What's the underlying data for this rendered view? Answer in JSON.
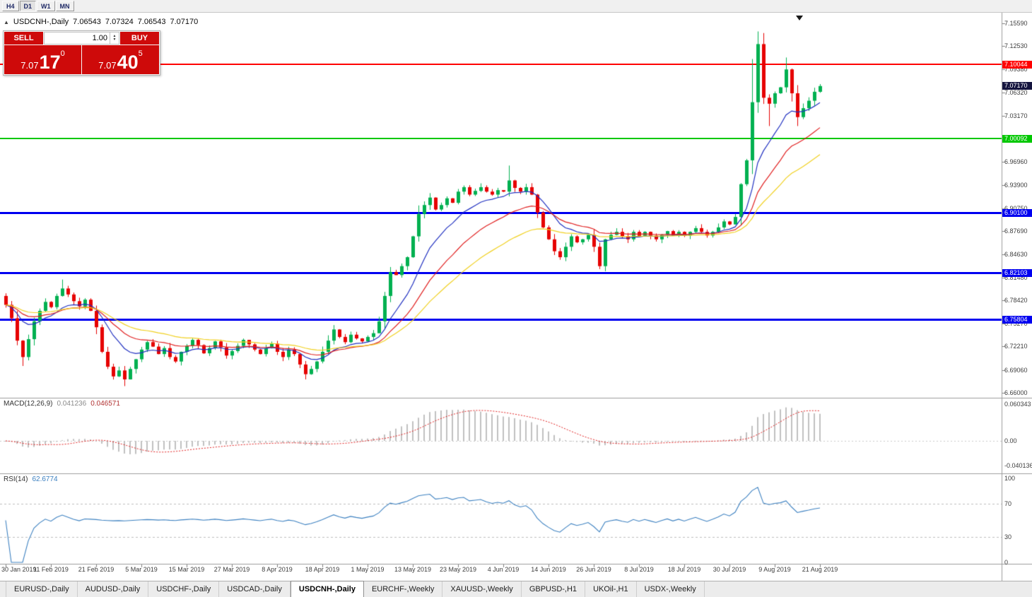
{
  "toolbar": {
    "timeframes": [
      {
        "label": "H4",
        "active": false
      },
      {
        "label": "D1",
        "active": true
      },
      {
        "label": "W1",
        "active": false
      },
      {
        "label": "MN",
        "active": false
      }
    ]
  },
  "chart": {
    "symbol_tf": "USDCNH-,Daily",
    "open": "7.06543",
    "high": "7.07324",
    "low": "7.06543",
    "close": "7.07170",
    "levels": [
      {
        "value": "7.10044",
        "color": "#FF0000",
        "thickness": 2
      },
      {
        "value": "7.00092",
        "color": "#00C800",
        "thickness": 2
      },
      {
        "value": "6.90100",
        "color": "#0000F0",
        "thickness": 3
      },
      {
        "value": "6.82103",
        "color": "#0000F0",
        "thickness": 3
      },
      {
        "value": "6.75804",
        "color": "#0000F0",
        "thickness": 3
      }
    ]
  },
  "trade_panel": {
    "sell_label": "SELL",
    "buy_label": "BUY",
    "volume": "1.00",
    "sell_price": {
      "small": "7.07",
      "big": "17",
      "sup": "0"
    },
    "buy_price": {
      "small": "7.07",
      "big": "40",
      "sup": "5"
    }
  },
  "price_axis": {
    "labels": [
      "7.15590",
      "7.12530",
      "7.09380",
      "7.06320",
      "7.03170",
      "6.96960",
      "6.93900",
      "6.90750",
      "6.87690",
      "6.84630",
      "6.81480",
      "6.78420",
      "6.75270",
      "6.72210",
      "6.69060",
      "6.66000"
    ],
    "current": {
      "text": "7.07170"
    }
  },
  "macd": {
    "title": "MACD(12,26,9)",
    "value1": "0.041236",
    "value2": "0.046571",
    "axis": [
      "0.060343",
      "0.00",
      "-0.040136"
    ]
  },
  "rsi": {
    "title": "RSI(14)",
    "value": "62.6774",
    "axis": [
      "100",
      "70",
      "30",
      "0"
    ],
    "levels": [
      70,
      30
    ]
  },
  "date_axis": {
    "step": 8,
    "labels": [
      "30 Jan 2019",
      "11 Feb 2019",
      "21 Feb 2019",
      "5 Mar 2019",
      "15 Mar 2019",
      "27 Mar 2019",
      "8 Apr 2019",
      "18 Apr 2019",
      "1 May 2019",
      "13 May 2019",
      "23 May 2019",
      "4 Jun 2019",
      "14 Jun 2019",
      "26 Jun 2019",
      "8 Jul 2019",
      "18 Jul 2019",
      "30 Jul 2019",
      "9 Aug 2019",
      "21 Aug 2019"
    ]
  },
  "tabs": [
    {
      "label": "EURUSD-,Daily",
      "active": false
    },
    {
      "label": "AUDUSD-,Daily",
      "active": false
    },
    {
      "label": "USDCHF-,Daily",
      "active": false
    },
    {
      "label": "USDCAD-,Daily",
      "active": false
    },
    {
      "label": "USDCNH-,Daily",
      "active": true
    },
    {
      "label": "EURCHF-,Weekly",
      "active": false
    },
    {
      "label": "XAUUSD-,Weekly",
      "active": false
    },
    {
      "label": "GBPUSD-,H1",
      "active": false
    },
    {
      "label": "UKOil-,H1",
      "active": false
    },
    {
      "label": "USDX-,Weekly",
      "active": false
    }
  ],
  "colors": {
    "panel_red": "#CE0A0A",
    "current_price_bg": "#15153F"
  },
  "chart_data": {
    "type": "candlestick",
    "symbol": "USDCNH-",
    "timeframe": "Daily",
    "title": "USDCNH-,Daily",
    "ylim": [
      6.66,
      7.1559
    ],
    "x_range": [
      "30 Jan 2019",
      "21 Aug 2019"
    ],
    "colors": {
      "up": "#00B050",
      "down": "#E60000",
      "macd_hist": "#C0C0C0",
      "macd_signal": "#E02020",
      "rsi": "#3C80C0"
    },
    "ma": [
      {
        "period": 10,
        "color": "#2030C0"
      },
      {
        "period": 20,
        "color": "#E02020"
      },
      {
        "period": 34,
        "color": "#F0D020"
      }
    ],
    "closes": [
      6.778,
      6.76,
      6.73,
      6.708,
      6.732,
      6.756,
      6.77,
      6.782,
      6.775,
      6.79,
      6.8,
      6.792,
      6.783,
      6.776,
      6.785,
      6.77,
      6.748,
      6.715,
      6.695,
      6.682,
      6.69,
      6.678,
      6.692,
      6.705,
      6.718,
      6.728,
      6.722,
      6.712,
      6.72,
      6.708,
      6.702,
      6.715,
      6.723,
      6.731,
      6.724,
      6.713,
      6.72,
      6.729,
      6.721,
      6.71,
      6.716,
      6.723,
      6.731,
      6.725,
      6.718,
      6.712,
      6.72,
      6.726,
      6.715,
      6.708,
      6.718,
      6.712,
      6.698,
      6.685,
      6.692,
      6.702,
      6.715,
      6.73,
      6.745,
      6.735,
      6.728,
      6.738,
      6.733,
      6.729,
      6.735,
      6.74,
      6.756,
      6.79,
      6.822,
      6.818,
      6.83,
      6.842,
      6.87,
      6.9,
      6.912,
      6.922,
      6.906,
      6.912,
      6.921,
      6.915,
      6.93,
      6.936,
      6.926,
      6.931,
      6.936,
      6.93,
      6.926,
      6.932,
      6.93,
      6.945,
      6.935,
      6.93,
      6.936,
      6.926,
      6.902,
      6.882,
      6.866,
      6.85,
      6.842,
      6.856,
      6.87,
      6.862,
      6.866,
      6.872,
      6.856,
      6.83,
      6.866,
      6.872,
      6.876,
      6.87,
      6.866,
      6.876,
      6.87,
      6.876,
      6.871,
      6.866,
      6.872,
      6.877,
      6.871,
      6.876,
      6.871,
      6.876,
      6.881,
      6.876,
      6.871,
      6.876,
      6.882,
      6.89,
      6.886,
      6.896,
      6.94,
      6.972,
      7.05,
      7.128,
      7.056,
      7.048,
      7.062,
      7.07,
      7.094,
      7.062,
      7.03,
      7.042,
      7.052,
      7.064,
      7.0717
    ],
    "overrides": [
      {
        "i": 3,
        "l": 6.696
      },
      {
        "i": 10,
        "h": 6.812
      },
      {
        "i": 21,
        "l": 6.669
      },
      {
        "i": 53,
        "l": 6.678
      },
      {
        "i": 89,
        "h": 6.965
      },
      {
        "i": 105,
        "l": 6.826
      },
      {
        "i": 132,
        "h": 7.108
      },
      {
        "i": 133,
        "h": 7.145
      },
      {
        "i": 135,
        "l": 7.018
      },
      {
        "i": 138,
        "h": 7.11
      },
      {
        "i": 140,
        "l": 7.018
      }
    ]
  }
}
